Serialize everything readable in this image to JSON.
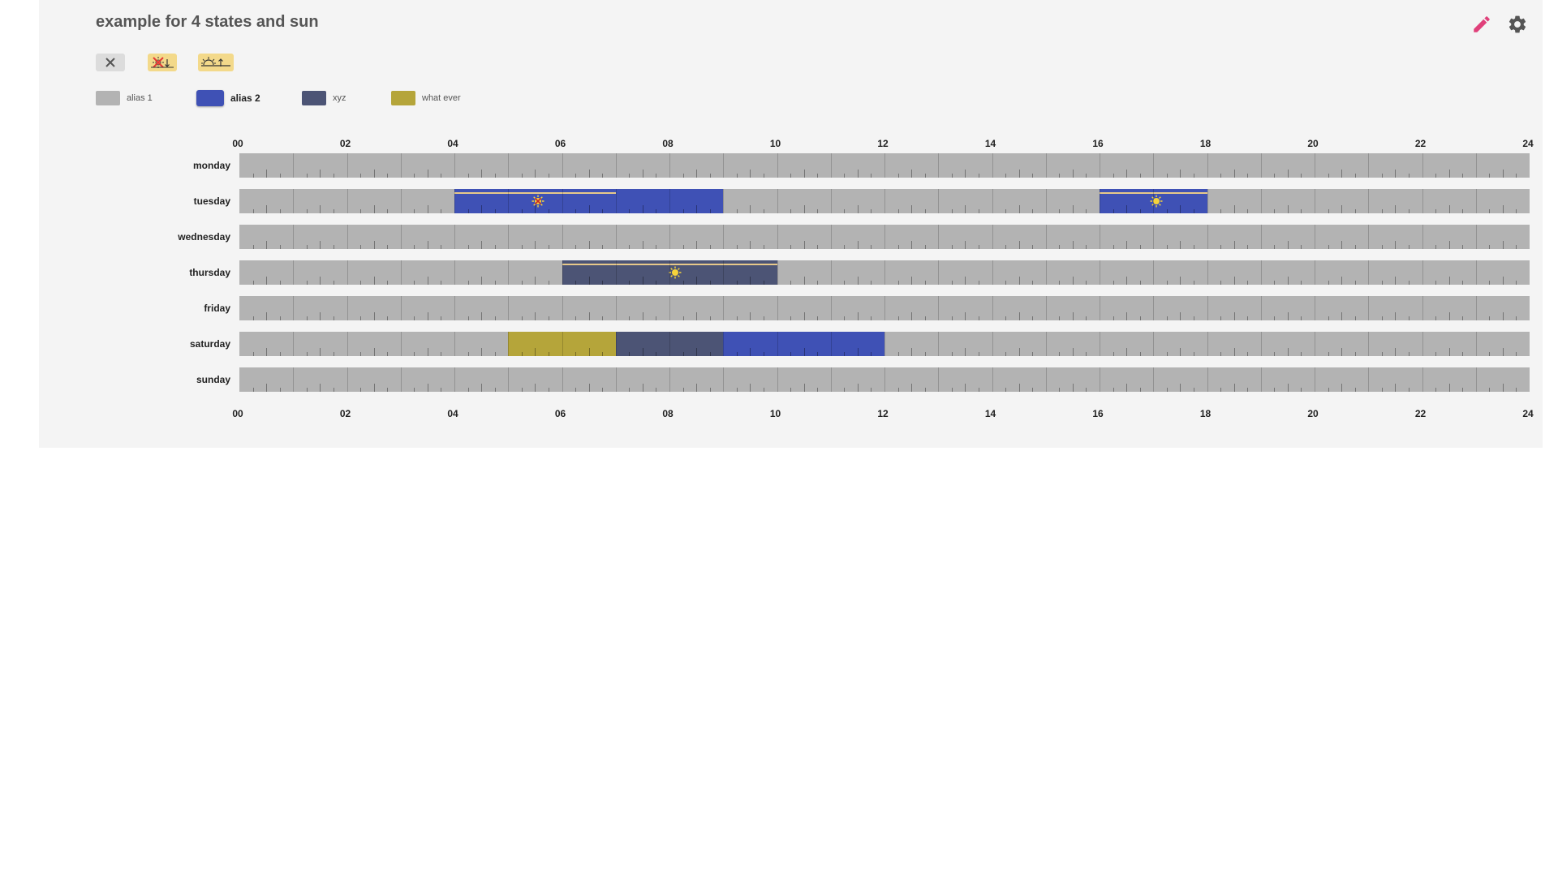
{
  "title": "example for 4 states and sun",
  "header_icons": {
    "edit": "pencil-icon",
    "settings": "gear-icon",
    "edit_color": "#e0407a",
    "settings_color": "#555555"
  },
  "state_buttons": [
    {
      "name": "off",
      "icon": "close-icon"
    },
    {
      "name": "sundown",
      "icon": "sundown-disabled-icon"
    },
    {
      "name": "sunrise",
      "icon": "sunrise-icon"
    }
  ],
  "legend": [
    {
      "label": "alias 1",
      "color": "#b3b3b3",
      "active": false
    },
    {
      "label": "alias 2",
      "color": "#3f51b5",
      "active": true
    },
    {
      "label": "xyz",
      "color": "#4c5475",
      "active": false
    },
    {
      "label": "what ever",
      "color": "#b5a53a",
      "active": false
    }
  ],
  "hour_labels": [
    "00",
    "02",
    "04",
    "06",
    "08",
    "10",
    "12",
    "14",
    "16",
    "18",
    "20",
    "22",
    "24"
  ],
  "days": [
    {
      "label": "monday",
      "segments": []
    },
    {
      "label": "tuesday",
      "segments": [
        {
          "start": 4,
          "end": 7,
          "state": "alias 2",
          "sun": "sundown",
          "icon_at": 5.55
        },
        {
          "start": 7,
          "end": 9,
          "state": "alias 2"
        },
        {
          "start": 16,
          "end": 18,
          "state": "alias 2",
          "sun": "sunrise",
          "icon_at": 17.05
        }
      ]
    },
    {
      "label": "wednesday",
      "segments": []
    },
    {
      "label": "thursday",
      "segments": [
        {
          "start": 6,
          "end": 10,
          "state": "xyz",
          "sun": "sunrise",
          "icon_at": 8.1
        }
      ]
    },
    {
      "label": "friday",
      "segments": []
    },
    {
      "label": "saturday",
      "segments": [
        {
          "start": 5,
          "end": 7,
          "state": "what ever"
        },
        {
          "start": 7,
          "end": 9,
          "state": "xyz"
        },
        {
          "start": 9,
          "end": 12,
          "state": "alias 2"
        }
      ]
    },
    {
      "label": "sunday",
      "segments": []
    }
  ]
}
